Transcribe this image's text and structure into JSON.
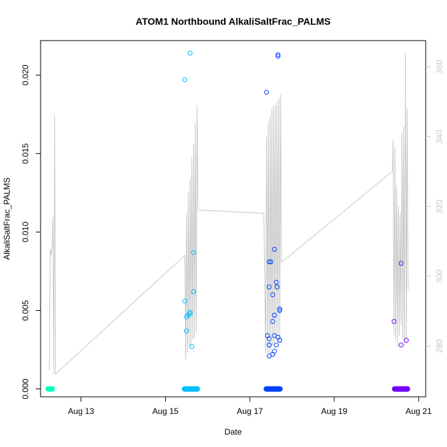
{
  "chart_data": {
    "type": "scatter",
    "title": "ATOM1 Northbound AlkaliSaltFrac_PALMS",
    "xlabel": "Date",
    "ylabel": "AlkaliSaltFrac_PALMS",
    "x_ticks": [
      {
        "date": "2016-08-13",
        "label": "Aug 13"
      },
      {
        "date": "2016-08-15",
        "label": "Aug 15"
      },
      {
        "date": "2016-08-17",
        "label": "Aug 17"
      },
      {
        "date": "2016-08-19",
        "label": "Aug 19"
      },
      {
        "date": "2016-08-21",
        "label": "Aug 21"
      }
    ],
    "xlim": [
      "2016-08-12 01:00",
      "2016-08-21 04:00"
    ],
    "ylim": [
      -0.0005,
      0.0222
    ],
    "y_ticks": [
      "0.000",
      "0.005",
      "0.010",
      "0.015",
      "0.020"
    ],
    "y2_ticks": [
      "280",
      "300",
      "320",
      "340",
      "360"
    ],
    "y2lim": [
      265.5,
      367.5
    ],
    "colors": {
      "flight1": "#00FFC0",
      "flight2": "#00BFFF",
      "flight3": "#0040FF",
      "flight4": "#7000FF",
      "altitude_line": "#c8c8c8",
      "y2_axis": "#c8c8c8"
    },
    "zero_bands": [
      {
        "start": "2016-08-12 05:00",
        "end": "2016-08-12 08:00",
        "color": "#00FFC0"
      },
      {
        "start": "2016-08-15 10:30",
        "end": "2016-08-15 18:30",
        "color": "#00BFFF"
      },
      {
        "start": "2016-08-17 09:00",
        "end": "2016-08-17 17:30",
        "color": "#0040FF"
      },
      {
        "start": "2016-08-20 10:00",
        "end": "2016-08-20 18:00",
        "color": "#7000FF"
      }
    ],
    "series": [
      {
        "color": "#00BFFF",
        "points": [
          {
            "x": "2016-08-15 14:00",
            "y": 0.0214
          },
          {
            "x": "2016-08-15 11:00",
            "y": 0.0197
          },
          {
            "x": "2016-08-15 16:00",
            "y": 0.0087
          },
          {
            "x": "2016-08-15 16:00",
            "y": 0.0062
          },
          {
            "x": "2016-08-15 11:00",
            "y": 0.0056
          },
          {
            "x": "2016-08-15 14:00",
            "y": 0.0049
          },
          {
            "x": "2016-08-15 13:00",
            "y": 0.0047
          },
          {
            "x": "2016-08-15 14:00",
            "y": 0.0048
          },
          {
            "x": "2016-08-15 12:00",
            "y": 0.0046
          },
          {
            "x": "2016-08-15 12:00",
            "y": 0.0037
          },
          {
            "x": "2016-08-15 15:00",
            "y": 0.0027
          }
        ]
      },
      {
        "color": "#0040FF",
        "points": [
          {
            "x": "2016-08-17 16:00",
            "y": 0.0213
          },
          {
            "x": "2016-08-17 16:00",
            "y": 0.0212
          },
          {
            "x": "2016-08-17 09:30",
            "y": 0.0189
          },
          {
            "x": "2016-08-17 14:00",
            "y": 0.0089
          },
          {
            "x": "2016-08-17 12:00",
            "y": 0.0081
          },
          {
            "x": "2016-08-17 11:00",
            "y": 0.0081
          },
          {
            "x": "2016-08-17 15:00",
            "y": 0.0068
          },
          {
            "x": "2016-08-17 11:00",
            "y": 0.0065
          },
          {
            "x": "2016-08-17 15:30",
            "y": 0.0065
          },
          {
            "x": "2016-08-17 13:00",
            "y": 0.006
          },
          {
            "x": "2016-08-17 17:00",
            "y": 0.0051
          },
          {
            "x": "2016-08-17 17:00",
            "y": 0.005
          },
          {
            "x": "2016-08-17 14:00",
            "y": 0.0047
          },
          {
            "x": "2016-08-17 14:00",
            "y": 0.0047
          },
          {
            "x": "2016-08-17 13:00",
            "y": 0.0043
          },
          {
            "x": "2016-08-17 10:00",
            "y": 0.0034
          },
          {
            "x": "2016-08-17 14:00",
            "y": 0.0034
          },
          {
            "x": "2016-08-17 16:00",
            "y": 0.0033
          },
          {
            "x": "2016-08-17 11:00",
            "y": 0.0032
          },
          {
            "x": "2016-08-17 17:00",
            "y": 0.0031
          },
          {
            "x": "2016-08-17 17:00",
            "y": 0.0031
          },
          {
            "x": "2016-08-17 11:00",
            "y": 0.0028
          },
          {
            "x": "2016-08-17 11:00",
            "y": 0.0028
          },
          {
            "x": "2016-08-17 15:00",
            "y": 0.0028
          },
          {
            "x": "2016-08-17 14:00",
            "y": 0.0024
          },
          {
            "x": "2016-08-17 13:00",
            "y": 0.0022
          },
          {
            "x": "2016-08-17 11:00",
            "y": 0.0021
          }
        ]
      },
      {
        "color": "#7000FF",
        "points": [
          {
            "x": "2016-08-20 14:00",
            "y": 0.008
          },
          {
            "x": "2016-08-20 10:00",
            "y": 0.0043
          },
          {
            "x": "2016-08-20 17:00",
            "y": 0.0031
          },
          {
            "x": "2016-08-20 14:00",
            "y": 0.0028
          }
        ]
      }
    ],
    "altitude_line": {
      "color": "#c8c8c8",
      "points": [
        [
          "2016-08-12 06:00",
          273
        ],
        [
          "2016-08-12 06:30",
          308
        ],
        [
          "2016-08-12 07:00",
          306
        ],
        [
          "2016-08-12 07:30",
          308
        ],
        [
          "2016-08-12 08:00",
          317
        ],
        [
          "2016-08-12 08:30",
          272
        ],
        [
          "2016-08-12 09:00",
          346
        ],
        [
          "2016-08-12 09:30",
          272
        ],
        [
          "2016-08-15 11:00",
          306
        ],
        [
          "2016-08-15 11:30",
          276
        ],
        [
          "2016-08-15 12:00",
          318
        ],
        [
          "2016-08-15 12:30",
          278
        ],
        [
          "2016-08-15 13:00",
          324
        ],
        [
          "2016-08-15 13:30",
          280
        ],
        [
          "2016-08-15 14:00",
          328
        ],
        [
          "2016-08-15 14:30",
          280
        ],
        [
          "2016-08-15 15:00",
          334
        ],
        [
          "2016-08-15 15:30",
          282
        ],
        [
          "2016-08-15 16:00",
          338
        ],
        [
          "2016-08-15 16:30",
          282
        ],
        [
          "2016-08-15 17:00",
          344
        ],
        [
          "2016-08-15 17:30",
          284
        ],
        [
          "2016-08-15 18:00",
          349
        ],
        [
          "2016-08-15 18:30",
          319
        ],
        [
          "2016-08-17 08:00",
          318
        ],
        [
          "2016-08-17 09:00",
          278
        ],
        [
          "2016-08-17 09:30",
          340
        ],
        [
          "2016-08-17 10:00",
          278
        ],
        [
          "2016-08-17 10:30",
          344
        ],
        [
          "2016-08-17 11:00",
          278
        ],
        [
          "2016-08-17 11:30",
          346
        ],
        [
          "2016-08-17 12:00",
          278
        ],
        [
          "2016-08-17 12:30",
          348
        ],
        [
          "2016-08-17 13:00",
          280
        ],
        [
          "2016-08-17 13:30",
          349
        ],
        [
          "2016-08-17 14:00",
          280
        ],
        [
          "2016-08-17 14:30",
          349
        ],
        [
          "2016-08-17 15:00",
          282
        ],
        [
          "2016-08-17 15:30",
          350
        ],
        [
          "2016-08-17 16:00",
          282
        ],
        [
          "2016-08-17 16:30",
          351
        ],
        [
          "2016-08-17 17:00",
          282
        ],
        [
          "2016-08-17 17:30",
          352
        ],
        [
          "2016-08-17 18:00",
          304
        ],
        [
          "2016-08-20 09:00",
          330
        ],
        [
          "2016-08-20 09:30",
          339
        ],
        [
          "2016-08-20 10:00",
          283
        ],
        [
          "2016-08-20 10:30",
          337
        ],
        [
          "2016-08-20 11:00",
          282
        ],
        [
          "2016-08-20 11:30",
          326
        ],
        [
          "2016-08-20 12:00",
          280
        ],
        [
          "2016-08-20 12:30",
          320
        ],
        [
          "2016-08-20 13:00",
          283
        ],
        [
          "2016-08-20 13:30",
          318
        ],
        [
          "2016-08-20 14:00",
          286
        ],
        [
          "2016-08-20 14:30",
          341
        ],
        [
          "2016-08-20 15:00",
          282
        ],
        [
          "2016-08-20 15:30",
          343
        ],
        [
          "2016-08-20 16:00",
          280
        ],
        [
          "2016-08-20 16:30",
          364
        ],
        [
          "2016-08-20 17:00",
          282
        ],
        [
          "2016-08-20 17:30",
          348
        ],
        [
          "2016-08-20 18:00",
          296
        ]
      ]
    }
  }
}
